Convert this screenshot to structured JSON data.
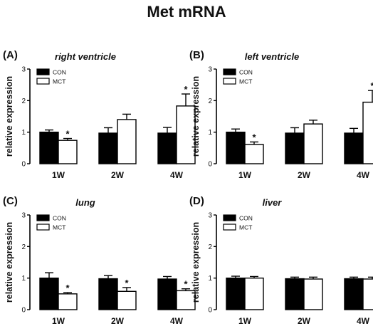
{
  "title": "Met mRNA",
  "chart_data": [
    {
      "type": "bar",
      "panel_label": "(A)",
      "title": "right ventricle",
      "ylabel": "relative expression",
      "categories": [
        "1W",
        "2W",
        "4W"
      ],
      "ylim": [
        0,
        3
      ],
      "yticks": [
        "0",
        "1",
        "2",
        "3"
      ],
      "legend_position": "top-left",
      "series": [
        {
          "name": "CON",
          "color": "#000000",
          "values": [
            1.0,
            0.97,
            0.97
          ],
          "errors": [
            0.07,
            0.17,
            0.18
          ]
        },
        {
          "name": "MCT",
          "color": "#ffffff",
          "values": [
            0.74,
            1.4,
            1.83
          ],
          "errors": [
            0.06,
            0.17,
            0.38
          ]
        }
      ],
      "significance": [
        "*",
        "",
        "*"
      ]
    },
    {
      "type": "bar",
      "panel_label": "(B)",
      "title": "left ventricle",
      "ylabel": "relative expression",
      "categories": [
        "1W",
        "2W",
        "4W"
      ],
      "ylim": [
        0,
        3
      ],
      "yticks": [
        "0",
        "1",
        "2",
        "3"
      ],
      "legend_position": "top-left",
      "series": [
        {
          "name": "CON",
          "color": "#000000",
          "values": [
            1.0,
            0.97,
            0.97
          ],
          "errors": [
            0.1,
            0.17,
            0.15
          ]
        },
        {
          "name": "MCT",
          "color": "#ffffff",
          "values": [
            0.61,
            1.26,
            1.95
          ],
          "errors": [
            0.08,
            0.12,
            0.37
          ]
        }
      ],
      "significance": [
        "*",
        "",
        "*"
      ]
    },
    {
      "type": "bar",
      "panel_label": "(C)",
      "title": "lung",
      "ylabel": "relative expression",
      "categories": [
        "1W",
        "2W",
        "4W"
      ],
      "ylim": [
        0,
        3
      ],
      "yticks": [
        "0",
        "1",
        "2",
        "3"
      ],
      "legend_position": "top-left",
      "series": [
        {
          "name": "CON",
          "color": "#000000",
          "values": [
            1.0,
            0.98,
            0.97
          ],
          "errors": [
            0.17,
            0.1,
            0.08
          ]
        },
        {
          "name": "MCT",
          "color": "#ffffff",
          "values": [
            0.5,
            0.58,
            0.6
          ],
          "errors": [
            0.04,
            0.12,
            0.06
          ]
        }
      ],
      "significance": [
        "*",
        "*",
        "*"
      ]
    },
    {
      "type": "bar",
      "panel_label": "(D)",
      "title": "liver",
      "ylabel": "relative expression",
      "categories": [
        "1W",
        "2W",
        "4W"
      ],
      "ylim": [
        0,
        3
      ],
      "yticks": [
        "0",
        "1",
        "2",
        "3"
      ],
      "legend_position": "top-left",
      "series": [
        {
          "name": "CON",
          "color": "#000000",
          "values": [
            1.0,
            0.98,
            0.98
          ],
          "errors": [
            0.06,
            0.05,
            0.05
          ]
        },
        {
          "name": "MCT",
          "color": "#ffffff",
          "values": [
            1.0,
            0.97,
            0.97
          ],
          "errors": [
            0.05,
            0.06,
            0.06
          ]
        }
      ],
      "significance": [
        "",
        "",
        ""
      ]
    }
  ]
}
